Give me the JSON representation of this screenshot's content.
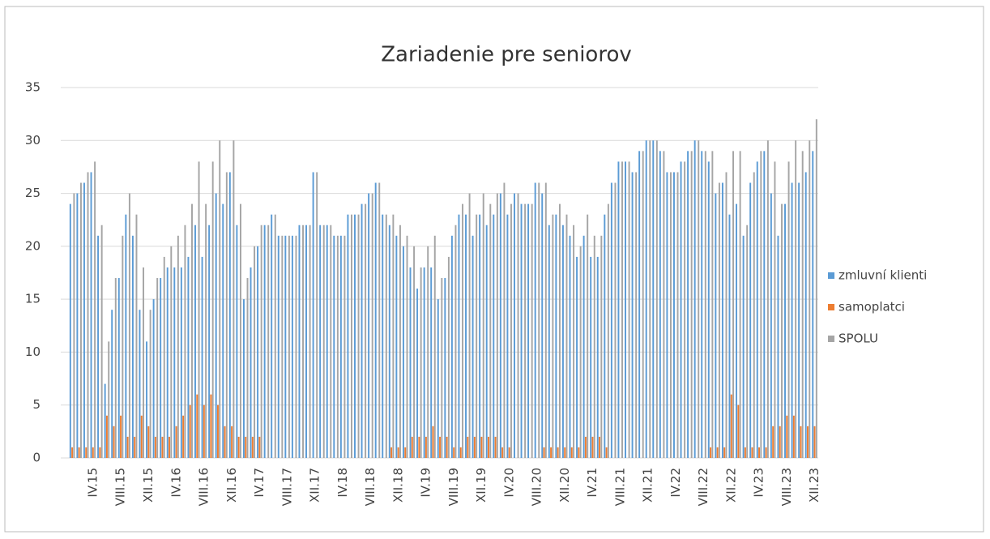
{
  "chart_data": {
    "type": "bar",
    "title": "Zariadenie pre seniorov",
    "categories": [
      null,
      null,
      null,
      "IV.15",
      null,
      null,
      null,
      "VIII.15",
      null,
      null,
      null,
      "XII.15",
      null,
      null,
      null,
      "IV.16",
      null,
      null,
      null,
      "VIII.16",
      null,
      null,
      null,
      "XII.16",
      null,
      null,
      null,
      "IV.17",
      null,
      null,
      null,
      "VIII.17",
      null,
      null,
      null,
      "XII.17",
      null,
      null,
      null,
      "IV.18",
      null,
      null,
      null,
      "VIII.18",
      null,
      null,
      null,
      "XII.18",
      null,
      null,
      null,
      "IV.19",
      null,
      null,
      null,
      "VIII.19",
      null,
      null,
      null,
      "XII.19",
      null,
      null,
      null,
      "IV.20",
      null,
      null,
      null,
      "VIII.20",
      null,
      null,
      null,
      "XII.20",
      null,
      null,
      null,
      "IV.21",
      null,
      null,
      null,
      "VIII.21",
      null,
      null,
      null,
      "XII.21",
      null,
      null,
      null,
      "IV.22",
      null,
      null,
      null,
      "VIII.22",
      null,
      null,
      null,
      "XII.22",
      null,
      null,
      null,
      "IV.23",
      null,
      null,
      null,
      "VIII.23",
      null,
      null,
      null,
      "XII.23"
    ],
    "series": [
      {
        "name": "zmluvní klienti",
        "color": "#5b9bd5",
        "values": [
          24,
          25,
          26,
          27,
          21,
          7,
          14,
          17,
          23,
          21,
          14,
          11,
          15,
          17,
          18,
          18,
          18,
          19,
          22,
          19,
          22,
          25,
          24,
          27,
          22,
          15,
          18,
          20,
          22,
          23,
          21,
          21,
          21,
          22,
          22,
          27,
          22,
          22,
          21,
          21,
          23,
          23,
          24,
          25,
          26,
          23,
          22,
          21,
          20,
          18,
          16,
          18,
          18,
          15,
          17,
          21,
          23,
          23,
          21,
          23,
          22,
          23,
          25,
          23,
          25,
          24,
          24,
          26,
          25,
          22,
          23,
          22,
          21,
          19,
          21,
          19,
          19,
          23,
          26,
          28,
          28,
          27,
          29,
          30,
          30,
          29,
          27,
          27,
          28,
          29,
          30,
          29,
          28,
          25,
          26,
          23,
          24,
          21,
          26,
          28,
          29,
          25,
          21,
          24,
          26,
          26,
          27,
          29
        ]
      },
      {
        "name": "samoplatci",
        "color": "#ed7d31",
        "values": [
          1,
          1,
          1,
          1,
          1,
          4,
          3,
          4,
          2,
          2,
          4,
          3,
          2,
          2,
          2,
          3,
          4,
          5,
          6,
          5,
          6,
          5,
          3,
          3,
          2,
          2,
          2,
          2,
          0,
          0,
          0,
          0,
          0,
          0,
          0,
          0,
          0,
          0,
          0,
          0,
          0,
          0,
          0,
          0,
          0,
          0,
          1,
          1,
          1,
          2,
          2,
          2,
          3,
          2,
          2,
          1,
          1,
          2,
          2,
          2,
          2,
          2,
          1,
          1,
          0,
          0,
          0,
          0,
          1,
          1,
          1,
          1,
          1,
          1,
          2,
          2,
          2,
          1,
          0,
          0,
          0,
          0,
          0,
          0,
          0,
          0,
          0,
          0,
          0,
          0,
          0,
          0,
          1,
          1,
          1,
          6,
          5,
          1,
          1,
          1,
          1,
          3,
          3,
          4,
          4,
          3,
          3,
          3
        ]
      },
      {
        "name": "SPOLU",
        "color": "#a5a5a5",
        "values": [
          25,
          26,
          27,
          28,
          22,
          11,
          17,
          21,
          25,
          23,
          18,
          14,
          17,
          19,
          20,
          21,
          22,
          24,
          28,
          24,
          28,
          30,
          27,
          30,
          24,
          17,
          20,
          22,
          22,
          23,
          21,
          21,
          21,
          22,
          22,
          27,
          22,
          22,
          21,
          21,
          23,
          23,
          24,
          25,
          26,
          23,
          23,
          22,
          21,
          20,
          18,
          20,
          21,
          17,
          19,
          22,
          24,
          25,
          23,
          25,
          24,
          25,
          26,
          24,
          25,
          24,
          24,
          26,
          26,
          23,
          24,
          23,
          22,
          20,
          23,
          21,
          21,
          24,
          26,
          28,
          28,
          27,
          29,
          30,
          30,
          29,
          27,
          27,
          28,
          29,
          30,
          29,
          29,
          26,
          27,
          29,
          29,
          22,
          27,
          29,
          30,
          28,
          24,
          28,
          30,
          29,
          30,
          32
        ]
      }
    ],
    "ylim": [
      0,
      35
    ],
    "yticks": [
      0,
      5,
      10,
      15,
      20,
      25,
      30,
      35
    ],
    "grid": true,
    "legend": "right"
  }
}
